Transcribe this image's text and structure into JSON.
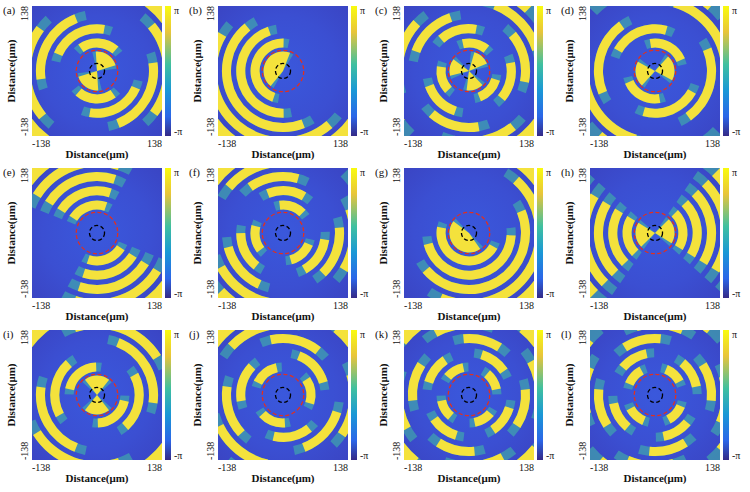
{
  "chart_data": [
    {
      "type": "heatmap",
      "title": "(a)",
      "x_label": "Distance(μm)",
      "y_label": "Distance(μm)",
      "xlim": [
        -138,
        138
      ],
      "ylim": [
        -138,
        138
      ],
      "xticks": [
        -138,
        138
      ],
      "yticks": [
        -138,
        138
      ],
      "colorbar": {
        "range": [
          -3.1416,
          3.1416
        ],
        "ticks": [
          {
            "value": -3.1416,
            "label": "-π"
          },
          {
            "value": 3.1416,
            "label": "π"
          }
        ]
      },
      "circles": [
        {
          "radius": 44,
          "color": "#e03020",
          "line_style": "dashed"
        },
        {
          "radius": 16,
          "color": "#000000",
          "line_style": "dashed"
        }
      ]
    },
    {
      "type": "heatmap",
      "title": "(b)",
      "x_label": "Distance(μm)",
      "y_label": "Distance(μm)",
      "xlim": [
        -138,
        138
      ],
      "ylim": [
        -138,
        138
      ],
      "xticks": [
        -138,
        138
      ],
      "yticks": [
        -138,
        138
      ],
      "colorbar": {
        "range": [
          -3.1416,
          3.1416
        ],
        "ticks": [
          {
            "value": -3.1416,
            "label": "-π"
          },
          {
            "value": 3.1416,
            "label": "π"
          }
        ]
      },
      "circles": [
        {
          "radius": 44,
          "color": "#e03020",
          "line_style": "dashed"
        },
        {
          "radius": 16,
          "color": "#000000",
          "line_style": "dashed"
        }
      ]
    },
    {
      "type": "heatmap",
      "title": "(c)",
      "x_label": "Distance(μm)",
      "y_label": "Distance(μm)",
      "xlim": [
        -138,
        138
      ],
      "ylim": [
        -138,
        138
      ],
      "xticks": [
        -138,
        138
      ],
      "yticks": [
        -138,
        138
      ],
      "colorbar": {
        "range": [
          -3.1416,
          3.1416
        ],
        "ticks": [
          {
            "value": -3.1416,
            "label": "-π"
          },
          {
            "value": 3.1416,
            "label": "π"
          }
        ]
      },
      "circles": [
        {
          "radius": 44,
          "color": "#e03020",
          "line_style": "dashed"
        },
        {
          "radius": 16,
          "color": "#000000",
          "line_style": "dashed"
        }
      ]
    },
    {
      "type": "heatmap",
      "title": "(d)",
      "x_label": "Distance(μm)",
      "y_label": "Distance(μm)",
      "xlim": [
        -138,
        138
      ],
      "ylim": [
        -138,
        138
      ],
      "xticks": [
        -138,
        138
      ],
      "yticks": [
        -138,
        138
      ],
      "colorbar": {
        "range": [
          -3.1416,
          3.1416
        ],
        "ticks": [
          {
            "value": -3.1416,
            "label": "-π"
          },
          {
            "value": 3.1416,
            "label": "π"
          }
        ]
      },
      "circles": [
        {
          "radius": 44,
          "color": "#e03020",
          "line_style": "dashed"
        },
        {
          "radius": 16,
          "color": "#000000",
          "line_style": "dashed"
        }
      ]
    },
    {
      "type": "heatmap",
      "title": "(e)",
      "x_label": "Distance(μm)",
      "y_label": "Distance(μm)",
      "xlim": [
        -138,
        138
      ],
      "ylim": [
        -138,
        138
      ],
      "xticks": [
        -138,
        138
      ],
      "yticks": [
        -138,
        138
      ],
      "colorbar": {
        "range": [
          -3.1416,
          3.1416
        ],
        "ticks": [
          {
            "value": -3.1416,
            "label": "-π"
          },
          {
            "value": 3.1416,
            "label": "π"
          }
        ]
      },
      "circles": [
        {
          "radius": 44,
          "color": "#e03020",
          "line_style": "dashed"
        },
        {
          "radius": 16,
          "color": "#000000",
          "line_style": "dashed"
        }
      ]
    },
    {
      "type": "heatmap",
      "title": "(f)",
      "x_label": "Distance(μm)",
      "y_label": "Distance(μm)",
      "xlim": [
        -138,
        138
      ],
      "ylim": [
        -138,
        138
      ],
      "xticks": [
        -138,
        138
      ],
      "yticks": [
        -138,
        138
      ],
      "colorbar": {
        "range": [
          -3.1416,
          3.1416
        ],
        "ticks": [
          {
            "value": -3.1416,
            "label": "-π"
          },
          {
            "value": 3.1416,
            "label": "π"
          }
        ]
      },
      "circles": [
        {
          "radius": 44,
          "color": "#e03020",
          "line_style": "dashed"
        },
        {
          "radius": 16,
          "color": "#000000",
          "line_style": "dashed"
        }
      ]
    },
    {
      "type": "heatmap",
      "title": "(g)",
      "x_label": "Distance(μm)",
      "y_label": "Distance(μm)",
      "xlim": [
        -138,
        138
      ],
      "ylim": [
        -138,
        138
      ],
      "xticks": [
        -138,
        138
      ],
      "yticks": [
        -138,
        138
      ],
      "colorbar": {
        "range": [
          -3.1416,
          3.1416
        ],
        "ticks": [
          {
            "value": -3.1416,
            "label": "-π"
          },
          {
            "value": 3.1416,
            "label": "π"
          }
        ]
      },
      "circles": [
        {
          "radius": 44,
          "color": "#e03020",
          "line_style": "dashed"
        },
        {
          "radius": 16,
          "color": "#000000",
          "line_style": "dashed"
        }
      ]
    },
    {
      "type": "heatmap",
      "title": "(h)",
      "x_label": "Distance(μm)",
      "y_label": "Distance(μm)",
      "xlim": [
        -138,
        138
      ],
      "ylim": [
        -138,
        138
      ],
      "xticks": [
        -138,
        138
      ],
      "yticks": [
        -138,
        138
      ],
      "colorbar": {
        "range": [
          -3.1416,
          3.1416
        ],
        "ticks": [
          {
            "value": -3.1416,
            "label": "-π"
          },
          {
            "value": 3.1416,
            "label": "π"
          }
        ]
      },
      "circles": [
        {
          "radius": 44,
          "color": "#e03020",
          "line_style": "dashed"
        },
        {
          "radius": 16,
          "color": "#000000",
          "line_style": "dashed"
        }
      ]
    },
    {
      "type": "heatmap",
      "title": "(i)",
      "x_label": "Distance(μm)",
      "y_label": "Distance(μm)",
      "xlim": [
        -138,
        138
      ],
      "ylim": [
        -138,
        138
      ],
      "xticks": [
        -138,
        138
      ],
      "yticks": [
        -138,
        138
      ],
      "colorbar": {
        "range": [
          -3.1416,
          3.1416
        ],
        "ticks": [
          {
            "value": -3.1416,
            "label": "-π"
          },
          {
            "value": 3.1416,
            "label": "π"
          }
        ]
      },
      "circles": [
        {
          "radius": 44,
          "color": "#e03020",
          "line_style": "dashed"
        },
        {
          "radius": 16,
          "color": "#000000",
          "line_style": "dashed"
        }
      ]
    },
    {
      "type": "heatmap",
      "title": "(j)",
      "x_label": "Distance(μm)",
      "y_label": "Distance(μm)",
      "xlim": [
        -138,
        138
      ],
      "ylim": [
        -138,
        138
      ],
      "xticks": [
        -138,
        138
      ],
      "yticks": [
        -138,
        138
      ],
      "colorbar": {
        "range": [
          -3.1416,
          3.1416
        ],
        "ticks": [
          {
            "value": -3.1416,
            "label": "-π"
          },
          {
            "value": 3.1416,
            "label": "π"
          }
        ]
      },
      "circles": [
        {
          "radius": 44,
          "color": "#e03020",
          "line_style": "dashed"
        },
        {
          "radius": 16,
          "color": "#000000",
          "line_style": "dashed"
        }
      ]
    },
    {
      "type": "heatmap",
      "title": "(k)",
      "x_label": "Distance(μm)",
      "y_label": "Distance(μm)",
      "xlim": [
        -138,
        138
      ],
      "ylim": [
        -138,
        138
      ],
      "xticks": [
        -138,
        138
      ],
      "yticks": [
        -138,
        138
      ],
      "colorbar": {
        "range": [
          -3.1416,
          3.1416
        ],
        "ticks": [
          {
            "value": -3.1416,
            "label": "-π"
          },
          {
            "value": 3.1416,
            "label": "π"
          }
        ]
      },
      "circles": [
        {
          "radius": 44,
          "color": "#e03020",
          "line_style": "dashed"
        },
        {
          "radius": 16,
          "color": "#000000",
          "line_style": "dashed"
        }
      ]
    },
    {
      "type": "heatmap",
      "title": "(l)",
      "x_label": "Distance(μm)",
      "y_label": "Distance(μm)",
      "xlim": [
        -138,
        138
      ],
      "ylim": [
        -138,
        138
      ],
      "xticks": [
        -138,
        138
      ],
      "yticks": [
        -138,
        138
      ],
      "colorbar": {
        "range": [
          -3.1416,
          3.1416
        ],
        "ticks": [
          {
            "value": -3.1416,
            "label": "-π"
          },
          {
            "value": 3.1416,
            "label": "π"
          }
        ]
      },
      "circles": [
        {
          "radius": 44,
          "color": "#e03020",
          "line_style": "dashed"
        },
        {
          "radius": 16,
          "color": "#000000",
          "line_style": "dashed"
        }
      ]
    }
  ]
}
